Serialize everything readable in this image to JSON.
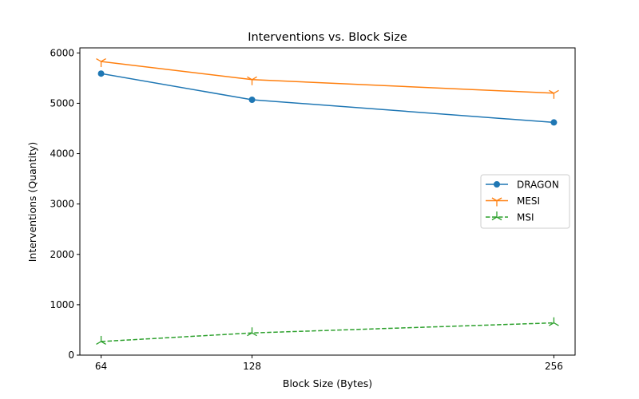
{
  "chart_data": {
    "type": "line",
    "title": "Interventions vs. Block Size",
    "xlabel": "Block Size (Bytes)",
    "ylabel": "Interventions (Quantity)",
    "x": [
      64,
      128,
      256
    ],
    "x_tick_labels": [
      "64",
      "128",
      "256"
    ],
    "xlim": [
      55,
      265
    ],
    "ylim": [
      0,
      6100
    ],
    "y_ticks": [
      0,
      1000,
      2000,
      3000,
      4000,
      5000,
      6000
    ],
    "y_tick_labels": [
      "0",
      "1000",
      "2000",
      "3000",
      "4000",
      "5000",
      "6000"
    ],
    "grid": false,
    "legend_position": "center-right",
    "series": [
      {
        "name": "DRAGON",
        "values": [
          5590,
          5070,
          4620
        ],
        "color": "#1f77b4",
        "marker": "circle",
        "line_style": "solid"
      },
      {
        "name": "MESI",
        "values": [
          5830,
          5470,
          5200
        ],
        "color": "#ff7f0e",
        "marker": "tri_down",
        "line_style": "solid"
      },
      {
        "name": "MSI",
        "values": [
          270,
          440,
          640
        ],
        "color": "#2ca02c",
        "marker": "tri_up",
        "line_style": "dashed"
      }
    ]
  }
}
